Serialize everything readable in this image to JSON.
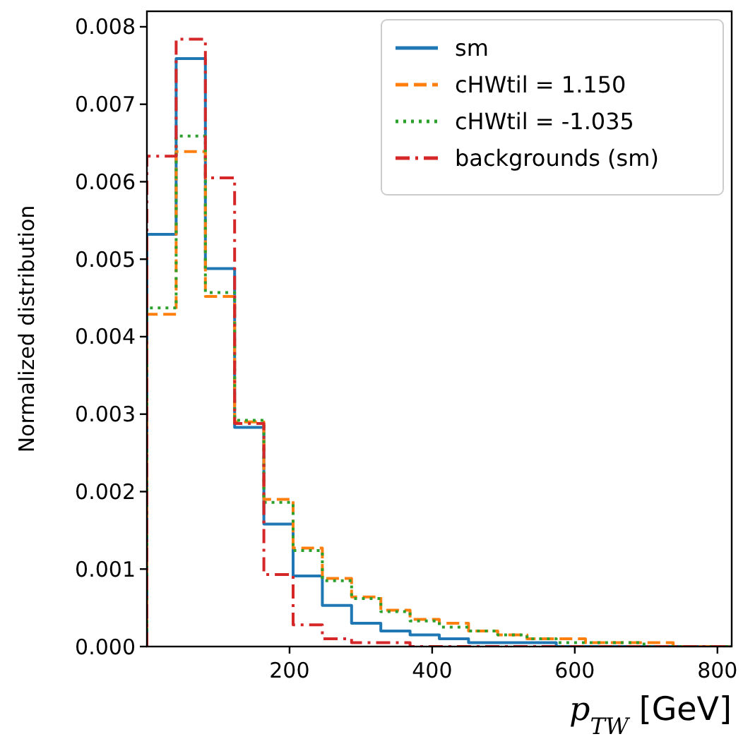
{
  "chart_data": {
    "type": "histogram",
    "xlabel": "p$_{TW}$ [GeV]",
    "ylabel": "Normalized distribution",
    "bins": [
      0,
      41,
      82,
      123,
      164,
      205,
      246,
      287,
      328,
      369,
      410,
      451,
      492,
      533,
      574,
      615,
      656,
      697,
      738,
      779,
      820
    ],
    "series": [
      {
        "name": "sm",
        "color": "#1f77b4",
        "line_style": "solid",
        "values": [
          0.00532,
          0.00759,
          0.00488,
          0.00283,
          0.00158,
          0.00091,
          0.00053,
          0.0003,
          0.0002,
          0.00015,
          0.0001,
          5e-05,
          5e-05,
          5e-05,
          0,
          0,
          0,
          0,
          0,
          0
        ]
      },
      {
        "name": "cHWtil = 1.150",
        "color": "#ff7f0e",
        "line_style": "dashed",
        "values": [
          0.00429,
          0.00639,
          0.00452,
          0.0029,
          0.0019,
          0.00127,
          0.00088,
          0.00064,
          0.00047,
          0.00035,
          0.0003,
          0.0002,
          0.00015,
          0.0001,
          0.0001,
          5e-05,
          5e-05,
          5e-05,
          0,
          0
        ]
      },
      {
        "name": "cHWtil = -1.035",
        "color": "#2ca02c",
        "line_style": "dotted",
        "values": [
          0.00437,
          0.00659,
          0.00457,
          0.00292,
          0.00186,
          0.00124,
          0.00085,
          0.00062,
          0.00045,
          0.00033,
          0.00025,
          0.0002,
          0.00015,
          0.0001,
          5e-05,
          5e-05,
          5e-05,
          0,
          0,
          0
        ]
      },
      {
        "name": "backgrounds (sm)",
        "color": "#d62728",
        "line_style": "dashdot",
        "values": [
          0.00633,
          0.00784,
          0.00605,
          0.00288,
          0.00093,
          0.00028,
          0.0001,
          5e-05,
          5e-05,
          0,
          0,
          0,
          0,
          0,
          0,
          0,
          0,
          0,
          0,
          0
        ]
      }
    ],
    "xlim": [
      0,
      820
    ],
    "xticks": [
      200,
      400,
      600,
      800
    ],
    "ylim": [
      0,
      0.0082
    ],
    "yticks": [
      {
        "value": 0,
        "label": "0.000"
      },
      {
        "value": 0.001,
        "label": "0.001"
      },
      {
        "value": 0.002,
        "label": "0.002"
      },
      {
        "value": 0.003,
        "label": "0.003"
      },
      {
        "value": 0.004,
        "label": "0.004"
      },
      {
        "value": 0.005,
        "label": "0.005"
      },
      {
        "value": 0.006,
        "label": "0.006"
      },
      {
        "value": 0.007,
        "label": "0.007"
      },
      {
        "value": 0.008,
        "label": "0.008"
      }
    ],
    "legend": "top right",
    "grid": false
  }
}
